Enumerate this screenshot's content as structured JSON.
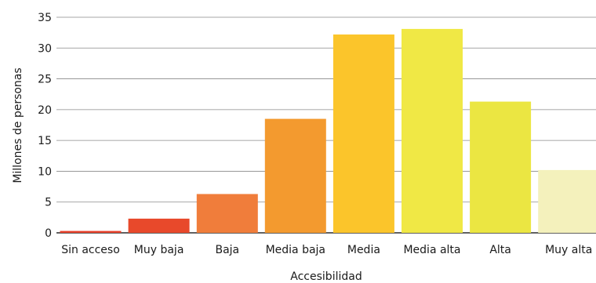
{
  "chart_data": {
    "type": "bar",
    "title": "",
    "xlabel": "Accesibilidad",
    "ylabel": "Millones de personas",
    "ylim": [
      0,
      35
    ],
    "yticks": [
      0,
      5,
      10,
      15,
      20,
      25,
      30,
      35
    ],
    "grid": true,
    "categories": [
      "Sin acceso",
      "Muy baja",
      "Baja",
      "Media baja",
      "Media",
      "Media alta",
      "Alta",
      "Muy alta"
    ],
    "values": [
      0.3,
      2.3,
      6.3,
      18.5,
      32.2,
      33.1,
      21.3,
      10.2
    ],
    "colors": [
      "#e8412b",
      "#e8492b",
      "#f07d3b",
      "#f39a2f",
      "#fbc52b",
      "#f0e845",
      "#ebe642",
      "#f4f1bc"
    ]
  }
}
